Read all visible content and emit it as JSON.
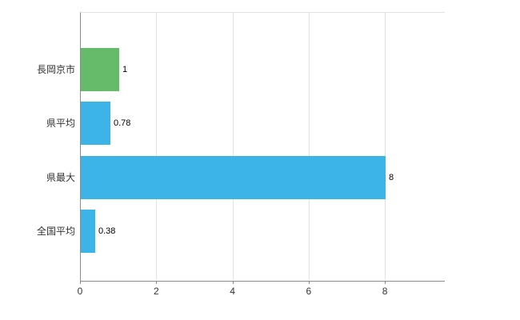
{
  "chart_data": {
    "type": "bar",
    "orientation": "horizontal",
    "title": "",
    "categories": [
      "長岡京市",
      "県平均",
      "県最大",
      "全国平均"
    ],
    "values": [
      1,
      0.78,
      8,
      0.38
    ],
    "value_labels": [
      "1",
      "0.78",
      "8",
      "0.38"
    ],
    "bar_colors": [
      "#66bb6a",
      "#3cb4e7",
      "#3cb4e7",
      "#3cb4e7"
    ],
    "xlim": [
      0,
      9.55
    ],
    "xticks": [
      0,
      2,
      4,
      6,
      8
    ],
    "xtick_labels": [
      "0",
      "2",
      "4",
      "6",
      "8"
    ],
    "grid": true,
    "legend": "none",
    "colors": {
      "grid": "#e2e2e2",
      "axis": "#8c8c8c",
      "text": "#333333",
      "background": "#ffffff"
    }
  }
}
